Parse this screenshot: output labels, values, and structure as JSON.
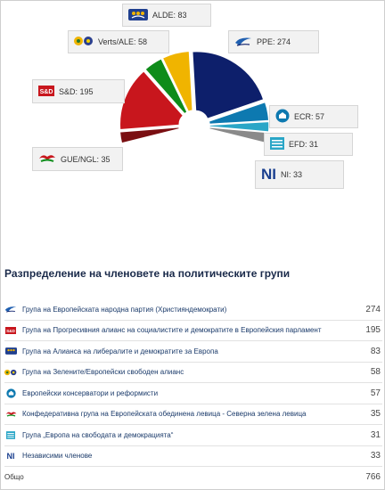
{
  "chart_data": {
    "type": "pie",
    "variant": "semicircle-offset",
    "slices": [
      {
        "short": "PPE",
        "value": 274,
        "color": "#0d1f6b"
      },
      {
        "short": "ECR",
        "value": 57,
        "color": "#0d79b0"
      },
      {
        "short": "EFD",
        "value": 31,
        "color": "#2aa6c7"
      },
      {
        "short": "NI",
        "value": 33,
        "color": "#8a8a8a"
      },
      {
        "short": "GUE/NGL",
        "value": 35,
        "color": "#7a0f12"
      },
      {
        "short": "S&D",
        "value": 195,
        "color": "#c8161d"
      },
      {
        "short": "Verts/ALE",
        "value": 58,
        "color": "#0e8c1a"
      },
      {
        "short": "ALDE",
        "value": 83,
        "color": "#f0b400"
      }
    ],
    "total": 766
  },
  "labels": {
    "alde": "ALDE: 83",
    "verts": "Verts/ALE: 58",
    "ppe": "PPE: 274",
    "sd": "S&D: 195",
    "ecr": "ECR: 57",
    "efd": "EFD: 31",
    "gue": "GUE/NGL: 35",
    "ni": "NI: 33"
  },
  "section_title": "Разпределение на членовете на политическите групи",
  "groups": [
    {
      "icon": "ppe-icon",
      "name": "Група на Европейската народна партия (Християндемократи)",
      "value": "274"
    },
    {
      "icon": "sd-icon",
      "name": "Група на Прогресивния алианс на социалистите и демократите в Европейския парламент",
      "value": "195"
    },
    {
      "icon": "alde-icon",
      "name": "Група на Алианса на либералите и демократите за Европа",
      "value": "83"
    },
    {
      "icon": "verts-icon",
      "name": "Група на Зелените/Европейски свободен алианс",
      "value": "58"
    },
    {
      "icon": "ecr-icon",
      "name": "Европейски консерватори и реформисти",
      "value": "57"
    },
    {
      "icon": "gue-icon",
      "name": "Конфедеративна група на Европейската обединена левица - Северна зелена левица",
      "value": "35"
    },
    {
      "icon": "efd-icon",
      "name": "Група „Европа на свободата и демокрацията“",
      "value": "31"
    },
    {
      "icon": "ni-icon",
      "name": "Независими членове",
      "value": "33"
    }
  ],
  "total_row": {
    "label": "Общо",
    "value": "766"
  },
  "colors": {
    "ppe": "#0d1f6b",
    "sd": "#c8161d",
    "alde": "#f0b400",
    "verts": "#0e8c1a",
    "ecr": "#0d79b0",
    "gue": "#7a0f12",
    "efd": "#2aa6c7",
    "ni": "#8a8a8a",
    "title": "#1a2a4a"
  }
}
